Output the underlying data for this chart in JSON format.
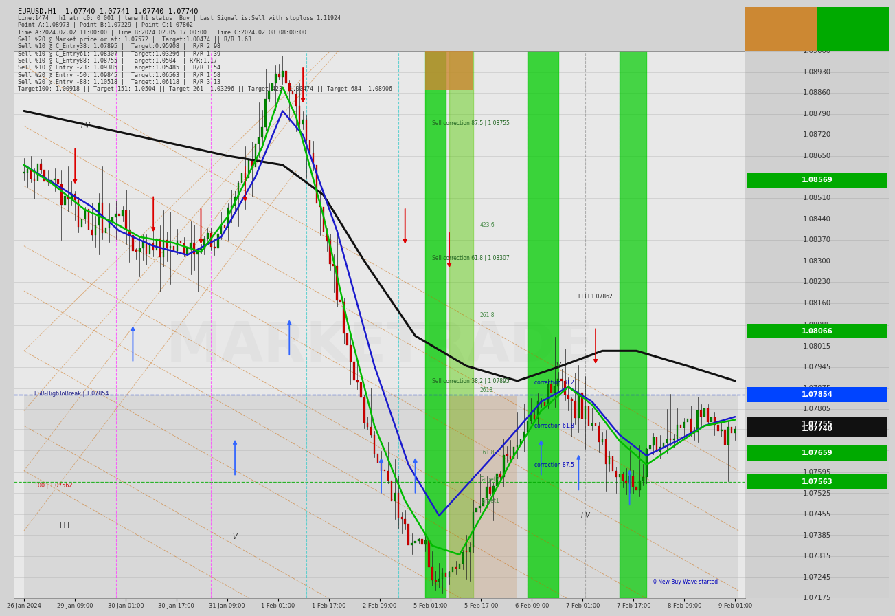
{
  "title": "EURUSD,H1  1.07740 1.07741 1.07740 1.07740",
  "info_lines": [
    "Line:1474 | h1_atr_c0: 0.001 | tema_h1_status: Buy | Last Signal is:Sell with stoploss:1.11924",
    "Point A:1.08973 | Point B:1.07229 | Point C:1.07862",
    "Time A:2024.02.02 11:00:00 | Time B:2024.02.05 17:00:00 | Time C:2024.02.08 08:00:00",
    "Sell %20 @ Market price or at: 1.07572 || Target:1.00474 || R/R:1.63",
    "Sell %10 @ C_Entry38: 1.07895 || Target:0.95908 || R/R:2.98",
    "Sell %10 @ C_Entry61: 1.08307 || Target:1.03296 || R/R:1.39",
    "Sell %10 @ C_Entry88: 1.08755 || Target:1.0504 || R/R:1.17",
    "Sell %10 @ Entry -23: 1.09385 || Target:1.05485 || R/R:1.54",
    "Sell %20 @ Entry -50: 1.09845 || Target:1.06563 || R/R:1.58",
    "Sell %20 @ Entry -88: 1.10518 || Target:1.06118 || R/R:3.13"
  ],
  "target_labels": "Target100: 1.00918 || Target 151: 1.0504 || Target 261: 1.03296 || Target 423: 1.00474 || Target 684: 1.08906",
  "background_color": "#d3d3d3",
  "chart_bg": "#e8e8e8",
  "chart_bg2": "#dcdcdc",
  "watermark": "MARKETRADE",
  "watermark_color": "#cccccc",
  "ylim": [
    1.07175,
    1.09
  ],
  "y_ticks": [
    1.07175,
    1.07245,
    1.07315,
    1.07385,
    1.07455,
    1.07525,
    1.07595,
    1.07669,
    1.0774,
    1.07805,
    1.07875,
    1.07945,
    1.08015,
    1.08085,
    1.0816,
    1.0823,
    1.083,
    1.0837,
    1.0844,
    1.0851,
    1.0858,
    1.0865,
    1.0872,
    1.0879,
    1.0886,
    1.0893,
    1.09
  ],
  "x_labels": [
    "26 Jan 2024",
    "29 Jan 09:00",
    "30 Jan 01:00",
    "30 Jan 17:00",
    "31 Jan 09:00",
    "1 Feb 01:00",
    "1 Feb 17:00",
    "2 Feb 09:00",
    "5 Feb 01:00",
    "5 Feb 17:00",
    "6 Feb 09:00",
    "7 Feb 01:00",
    "7 Feb 17:00",
    "8 Feb 09:00",
    "9 Feb 01:00"
  ],
  "highlighted_levels": {
    "1.08569": {
      "bg": "#00aa00",
      "fg": "white"
    },
    "1.08066": {
      "bg": "#00aa00",
      "fg": "white"
    },
    "1.07854": {
      "bg": "#0044ff",
      "fg": "white"
    },
    "1.07755": {
      "bg": "#111111",
      "fg": "white"
    },
    "1.07740": {
      "bg": "#111111",
      "fg": "white"
    },
    "1.07659": {
      "bg": "#00aa00",
      "fg": "white"
    },
    "1.07563": {
      "bg": "#00aa00",
      "fg": "white"
    }
  },
  "n_candles": 210
}
